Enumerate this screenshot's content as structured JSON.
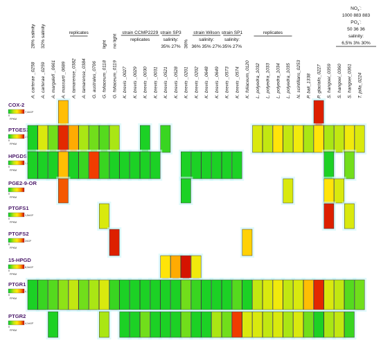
{
  "columns": [
    "A. carterae _0258",
    "A. carterae _0259",
    "A. margalefi _0661",
    "A. massarti _0689",
    "A. tamarense_0382",
    "A. tamarense_0384",
    "G. australes_0706",
    "G. foliaceum_0118",
    "G. foliaceum_0119",
    "K. brevis _0027",
    "K. brevis _0029",
    "K. brevis _0030",
    "K. brevis _0031",
    "K. brevis _0521",
    "K. brevis _0528",
    "K. brevis _0201",
    "K. brevis _0202",
    "K. brevis _0648",
    "K. brevis _0649",
    "K. brevis _0573",
    "K. brevis _0574",
    "K. foliaceum_0120",
    "L. polyedra_1032",
    "L. polyedra_1033",
    "L. polyedra_1034",
    "L. polyedra_1035",
    "N. scintillans_0253",
    "P. bali_1338",
    "P. glacialis_0227",
    "S. hangoei_0359",
    "S. hangoei_0360",
    "S. hangoei_0361",
    "T. jolla_0224"
  ],
  "groups": [
    {
      "label": "28% salinity",
      "col": 0
    },
    {
      "label": "32% salinity",
      "col": 1
    },
    {
      "label": "replicates",
      "start": 4,
      "end": 5
    },
    {
      "label": "light",
      "col": 7
    },
    {
      "label": "no light",
      "col": 8
    },
    {
      "label": "strain CCMP2229",
      "start": 9,
      "end": 12
    },
    {
      "label": "replicates",
      "start": 9,
      "end": 12,
      "line": 2
    },
    {
      "label": "strain SP3",
      "start": 13,
      "end": 14
    },
    {
      "label": "salinity:",
      "start": 13,
      "end": 14,
      "line": 2
    },
    {
      "label": "35% 27%",
      "start": 13,
      "end": 14,
      "line": 3
    },
    {
      "label": "36%",
      "col": 15
    },
    {
      "label": "strain Wilson",
      "start": 16,
      "end": 18
    },
    {
      "label": "salinity:",
      "start": 16,
      "end": 18,
      "line": 2
    },
    {
      "label": "36% 35% 27%",
      "start": 16,
      "end": 18,
      "line": 3
    },
    {
      "label": "strain SP1",
      "start": 19,
      "end": 20
    },
    {
      "label": "salinity:",
      "start": 19,
      "end": 20,
      "line": 2
    },
    {
      "label": "35% 27%",
      "start": 19,
      "end": 20,
      "line": 3
    },
    {
      "label": "replicates",
      "start": 22,
      "end": 25
    }
  ],
  "nutrient_box": {
    "line1": "NO",
    "line1_sub": "3",
    "line1_sup": "-",
    "line1_suffix": ":",
    "line2": "1000 883 883",
    "line3": "PO",
    "line3_sub": "4",
    "line3_sup": "-",
    "line3_suffix": ":",
    "line4": "50 36 36",
    "line5": "salinity:",
    "line6": "6,5% 3% 30%"
  },
  "scale_unit": "FPKM",
  "rows": [
    {
      "name": "COX-2",
      "scale_min": "0",
      "scale_max": "7,4x10²",
      "cells": [
        [
          3,
          0.6
        ],
        [
          28,
          0.92
        ]
      ]
    },
    {
      "name": "PTGES2",
      "scale_min": "0",
      "scale_max": "23,5x10²",
      "cells": [
        [
          0,
          0.05
        ],
        [
          1,
          0.4
        ],
        [
          2,
          0.2
        ],
        [
          3,
          0.9
        ],
        [
          4,
          0.65
        ],
        [
          5,
          0.3
        ],
        [
          6,
          0.2
        ],
        [
          7,
          0.15
        ],
        [
          8,
          0.3
        ],
        [
          11,
          0.05
        ],
        [
          13,
          0.1
        ],
        [
          22,
          0.4
        ],
        [
          23,
          0.35
        ],
        [
          24,
          0.5
        ],
        [
          25,
          0.35
        ],
        [
          26,
          0.45
        ],
        [
          27,
          0.3
        ],
        [
          28,
          0.5
        ],
        [
          29,
          0.3
        ],
        [
          30,
          0.35
        ],
        [
          31,
          0.45
        ],
        [
          32,
          0.4
        ]
      ]
    },
    {
      "name": "HPGDS",
      "scale_min": "0",
      "scale_max": "1,6x10³",
      "cells": [
        [
          0,
          0.05
        ],
        [
          1,
          0.05
        ],
        [
          2,
          0.05
        ],
        [
          3,
          0.6
        ],
        [
          4,
          0.05
        ],
        [
          5,
          0.1
        ],
        [
          6,
          0.85
        ],
        [
          7,
          0.1
        ],
        [
          8,
          0.05
        ],
        [
          9,
          0.05
        ],
        [
          10,
          0.05
        ],
        [
          11,
          0.05
        ],
        [
          12,
          0.05
        ],
        [
          15,
          0.05
        ],
        [
          16,
          0.05
        ],
        [
          17,
          0.05
        ],
        [
          18,
          0.05
        ],
        [
          19,
          0.05
        ],
        [
          20,
          0.05
        ],
        [
          29,
          0.05
        ],
        [
          31,
          0.2
        ]
      ]
    },
    {
      "name": "PGE2-9-OR",
      "scale_min": "0",
      "scale_max": "",
      "cells": [
        [
          3,
          0.8
        ],
        [
          15,
          0.05
        ],
        [
          25,
          0.4
        ],
        [
          29,
          0.5
        ],
        [
          30,
          0.4
        ]
      ]
    },
    {
      "name": "PTGFS1",
      "scale_min": "0",
      "scale_max": "1,5x10¹",
      "cells": [
        [
          7,
          0.4
        ],
        [
          29,
          0.92
        ],
        [
          31,
          0.4
        ]
      ]
    },
    {
      "name": "PTGFS2",
      "scale_min": "0",
      "scale_max": "2x10¹",
      "cells": [
        [
          8,
          0.92
        ],
        [
          21,
          0.55
        ]
      ]
    },
    {
      "name": "15-HPGD",
      "scale_min": "0",
      "scale_max": "8,3x10¹",
      "cells": [
        [
          13,
          0.5
        ],
        [
          14,
          0.65
        ],
        [
          15,
          0.95
        ],
        [
          16,
          0.45
        ]
      ]
    },
    {
      "name": "PTGR1",
      "scale_min": "0",
      "scale_max": "6,3x10³",
      "cells": [
        [
          0,
          0.05
        ],
        [
          1,
          0.1
        ],
        [
          2,
          0.15
        ],
        [
          3,
          0.25
        ],
        [
          4,
          0.35
        ],
        [
          5,
          0.2
        ],
        [
          6,
          0.3
        ],
        [
          7,
          0.4
        ],
        [
          8,
          0.1
        ],
        [
          9,
          0.05
        ],
        [
          10,
          0.05
        ],
        [
          11,
          0.05
        ],
        [
          12,
          0.05
        ],
        [
          13,
          0.05
        ],
        [
          14,
          0.05
        ],
        [
          15,
          0.2
        ],
        [
          16,
          0.1
        ],
        [
          17,
          0.05
        ],
        [
          18,
          0.05
        ],
        [
          19,
          0.05
        ],
        [
          20,
          0.15
        ],
        [
          21,
          0.05
        ],
        [
          22,
          0.35
        ],
        [
          23,
          0.4
        ],
        [
          24,
          0.45
        ],
        [
          25,
          0.35
        ],
        [
          26,
          0.4
        ],
        [
          27,
          0.6
        ],
        [
          28,
          0.9
        ],
        [
          29,
          0.4
        ],
        [
          30,
          0.35
        ],
        [
          31,
          0.15
        ],
        [
          32,
          0.2
        ]
      ]
    },
    {
      "name": "PTGR2",
      "scale_min": "0",
      "scale_max": "4,1x10²",
      "cells": [
        [
          2,
          0.05
        ],
        [
          7,
          0.3
        ],
        [
          9,
          0.05
        ],
        [
          10,
          0.05
        ],
        [
          11,
          0.2
        ],
        [
          12,
          0.05
        ],
        [
          13,
          0.05
        ],
        [
          14,
          0.05
        ],
        [
          15,
          0.2
        ],
        [
          16,
          0.05
        ],
        [
          17,
          0.05
        ],
        [
          18,
          0.3
        ],
        [
          19,
          0.2
        ],
        [
          20,
          0.85
        ],
        [
          21,
          0.4
        ],
        [
          22,
          0.4
        ],
        [
          23,
          0.35
        ],
        [
          24,
          0.4
        ],
        [
          25,
          0.3
        ],
        [
          26,
          0.4
        ],
        [
          27,
          0.2
        ],
        [
          28,
          0.05
        ],
        [
          29,
          0.3
        ],
        [
          30,
          0.35
        ],
        [
          31,
          0.1
        ]
      ]
    }
  ]
}
